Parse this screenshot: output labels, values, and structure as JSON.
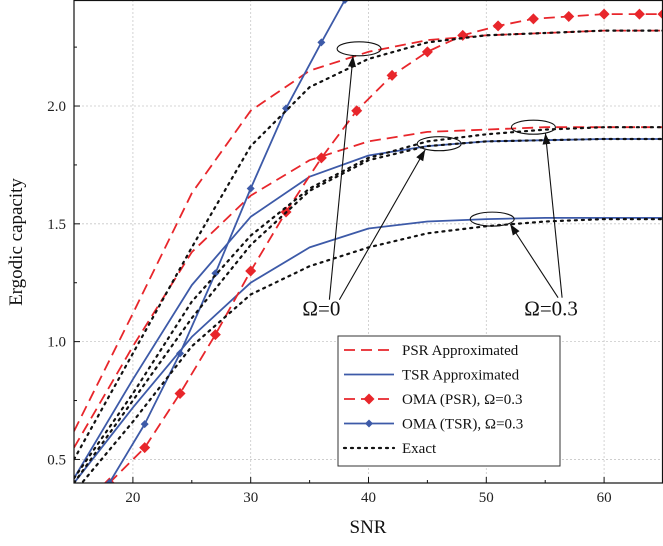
{
  "chart_data": {
    "type": "line",
    "xlabel": "SNR",
    "ylabel": "Ergodic capacity",
    "xlim": [
      15,
      65
    ],
    "ylim": [
      0.4,
      2.45
    ],
    "xticks": [
      20,
      30,
      40,
      50,
      60
    ],
    "yticks": [
      0.5,
      1.0,
      1.5,
      2.0
    ],
    "ytick_labels": [
      "0.5",
      "1.0",
      "1.5",
      "2.0"
    ],
    "grid": true,
    "legend_position": "lower-right",
    "colors": {
      "red": "#e8262b",
      "blue": "#3d5aa8",
      "black": "#111111"
    },
    "legend": [
      {
        "label": "PSR Approximated",
        "style": "red-dashed"
      },
      {
        "label": "TSR Approximated",
        "style": "blue-solid"
      },
      {
        "label": "OMA (PSR), Ω=0.3",
        "style": "red-dashed-diamond"
      },
      {
        "label": "OMA (TSR), Ω=0.3",
        "style": "blue-solid-diamond"
      },
      {
        "label": "Exact",
        "style": "black-dotted"
      }
    ],
    "annotations": [
      {
        "text": "Ω=0",
        "x": 36,
        "y": 1.11
      },
      {
        "text": "Ω=0.3",
        "x": 55.5,
        "y": 1.11
      }
    ],
    "series": [
      {
        "style": "red-dashed",
        "x": [
          15,
          20,
          25,
          30,
          35,
          40,
          45,
          50,
          55,
          60,
          65
        ],
        "y": [
          0.62,
          1.12,
          1.63,
          1.98,
          2.15,
          2.23,
          2.28,
          2.3,
          2.31,
          2.32,
          2.32
        ]
      },
      {
        "style": "red-dashed",
        "x": [
          15,
          20,
          25,
          30,
          35,
          40,
          45,
          50,
          55,
          60,
          65
        ],
        "y": [
          0.55,
          0.98,
          1.38,
          1.62,
          1.77,
          1.85,
          1.89,
          1.9,
          1.91,
          1.91,
          1.91
        ]
      },
      {
        "style": "blue-solid",
        "x": [
          15,
          20,
          25,
          30,
          35,
          40,
          45,
          50,
          55,
          60,
          65
        ],
        "y": [
          0.42,
          0.84,
          1.24,
          1.53,
          1.7,
          1.79,
          1.83,
          1.85,
          1.855,
          1.86,
          1.86
        ]
      },
      {
        "style": "blue-solid",
        "x": [
          15,
          20,
          25,
          30,
          35,
          40,
          45,
          50,
          55,
          60,
          65
        ],
        "y": [
          0.4,
          0.72,
          1.02,
          1.25,
          1.4,
          1.48,
          1.51,
          1.52,
          1.525,
          1.525,
          1.525
        ]
      },
      {
        "style": "red-dashed-diamond",
        "x": [
          18,
          21,
          24,
          27,
          30,
          33,
          36,
          39,
          42,
          45,
          48,
          51,
          54,
          57,
          60,
          63,
          65
        ],
        "y": [
          0.4,
          0.55,
          0.78,
          1.03,
          1.3,
          1.55,
          1.78,
          1.98,
          2.13,
          2.23,
          2.3,
          2.34,
          2.37,
          2.38,
          2.39,
          2.39,
          2.39
        ]
      },
      {
        "style": "blue-solid-diamond",
        "x": [
          18,
          21,
          24,
          27,
          30,
          33,
          36,
          38
        ],
        "y": [
          0.4,
          0.65,
          0.95,
          1.29,
          1.65,
          1.99,
          2.27,
          2.45
        ]
      },
      {
        "style": "black-dotted",
        "x": [
          15,
          20,
          25,
          30,
          35,
          40,
          45,
          50,
          55,
          60,
          65
        ],
        "y": [
          0.5,
          0.95,
          1.4,
          1.83,
          2.08,
          2.2,
          2.27,
          2.3,
          2.31,
          2.32,
          2.32
        ]
      },
      {
        "style": "black-dotted",
        "x": [
          15,
          20,
          25,
          30,
          35,
          40,
          45,
          50,
          55,
          60,
          65
        ],
        "y": [
          0.42,
          0.78,
          1.17,
          1.45,
          1.65,
          1.78,
          1.85,
          1.88,
          1.9,
          1.91,
          1.91
        ]
      },
      {
        "style": "black-dotted",
        "x": [
          15,
          20,
          25,
          30,
          35,
          40,
          45,
          50,
          55,
          60,
          65
        ],
        "y": [
          0.36,
          0.66,
          0.98,
          1.2,
          1.32,
          1.4,
          1.46,
          1.49,
          1.51,
          1.52,
          1.52
        ]
      },
      {
        "style": "black-dotted",
        "x": [
          15,
          20,
          25,
          30,
          35,
          40,
          45,
          50,
          55,
          60,
          65
        ],
        "y": [
          0.4,
          0.75,
          1.1,
          1.41,
          1.64,
          1.77,
          1.83,
          1.85,
          1.855,
          1.86,
          1.86
        ]
      }
    ],
    "ellipse_markers": [
      {
        "x": 39.2,
        "y": 2.243
      },
      {
        "x": 46,
        "y": 1.84
      },
      {
        "x": 54,
        "y": 1.91
      },
      {
        "x": 50.5,
        "y": 1.52
      }
    ]
  }
}
